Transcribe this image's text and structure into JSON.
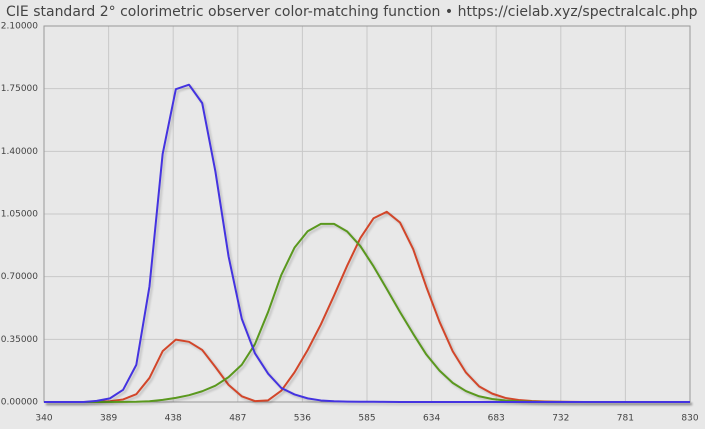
{
  "chart_data": {
    "type": "line",
    "title": "CIE standard 2° colorimetric observer color-matching function  •  https://cielab.xyz/spectralcalc.php",
    "x": [
      340,
      350,
      360,
      370,
      380,
      390,
      400,
      410,
      420,
      430,
      440,
      450,
      460,
      470,
      480,
      490,
      500,
      510,
      520,
      530,
      540,
      550,
      560,
      570,
      580,
      590,
      600,
      610,
      620,
      630,
      640,
      650,
      660,
      670,
      680,
      690,
      700,
      710,
      720,
      730,
      740,
      750,
      760,
      770,
      780,
      790,
      800,
      810,
      820,
      830
    ],
    "series": [
      {
        "color": "#d2462a",
        "values": [
          0,
          0,
          0,
          0,
          0.0014,
          0.0042,
          0.0143,
          0.0435,
          0.1344,
          0.2839,
          0.3483,
          0.3362,
          0.2908,
          0.1954,
          0.0956,
          0.032,
          0.0049,
          0.0093,
          0.0633,
          0.1655,
          0.2904,
          0.4334,
          0.5945,
          0.7621,
          0.9163,
          1.0263,
          1.0622,
          1.0026,
          0.8544,
          0.6424,
          0.4479,
          0.2835,
          0.1649,
          0.0874,
          0.0468,
          0.0227,
          0.0114,
          0.0058,
          0.0029,
          0.0014,
          0.0007,
          0.0003,
          0.0002,
          0.0001,
          0,
          0,
          0,
          0,
          0,
          0
        ]
      },
      {
        "color": "#5a981e",
        "values": [
          0,
          0,
          0,
          0,
          0,
          0.0001,
          0.0004,
          0.0012,
          0.004,
          0.0116,
          0.023,
          0.038,
          0.06,
          0.091,
          0.139,
          0.208,
          0.323,
          0.503,
          0.71,
          0.862,
          0.954,
          0.995,
          0.995,
          0.952,
          0.87,
          0.757,
          0.631,
          0.503,
          0.381,
          0.265,
          0.175,
          0.107,
          0.061,
          0.032,
          0.017,
          0.0082,
          0.0041,
          0.0021,
          0.001,
          0.0005,
          0.0002,
          0.0001,
          0.0001,
          0,
          0,
          0,
          0,
          0,
          0,
          0
        ]
      },
      {
        "color": "#4433e0",
        "values": [
          0,
          0,
          0,
          0,
          0.0065,
          0.0201,
          0.0679,
          0.2074,
          0.6456,
          1.3856,
          1.7471,
          1.7721,
          1.6692,
          1.2876,
          0.813,
          0.4652,
          0.272,
          0.1582,
          0.0782,
          0.0422,
          0.0203,
          0.0087,
          0.0039,
          0.0021,
          0.0017,
          0.0011,
          0.0008,
          0.0003,
          0.0002,
          0,
          0,
          0,
          0,
          0,
          0,
          0,
          0,
          0,
          0,
          0,
          0,
          0,
          0,
          0,
          0,
          0,
          0,
          0,
          0,
          0
        ]
      }
    ],
    "xlim": [
      340,
      830
    ],
    "xticks": [
      340,
      389,
      438,
      487,
      536,
      585,
      634,
      683,
      732,
      781,
      830
    ],
    "ylim": [
      0,
      2.1
    ],
    "yticks": [
      {
        "value": 0,
        "label": "0.00000"
      },
      {
        "value": 0.35,
        "label": "0.35000"
      },
      {
        "value": 0.7,
        "label": "0.70000"
      },
      {
        "value": 1.05,
        "label": "1.05000"
      },
      {
        "value": 1.4,
        "label": "1.40000"
      },
      {
        "value": 1.75,
        "label": "1.75000"
      },
      {
        "value": 2.1,
        "label": "2.10000"
      }
    ],
    "grid": true
  }
}
